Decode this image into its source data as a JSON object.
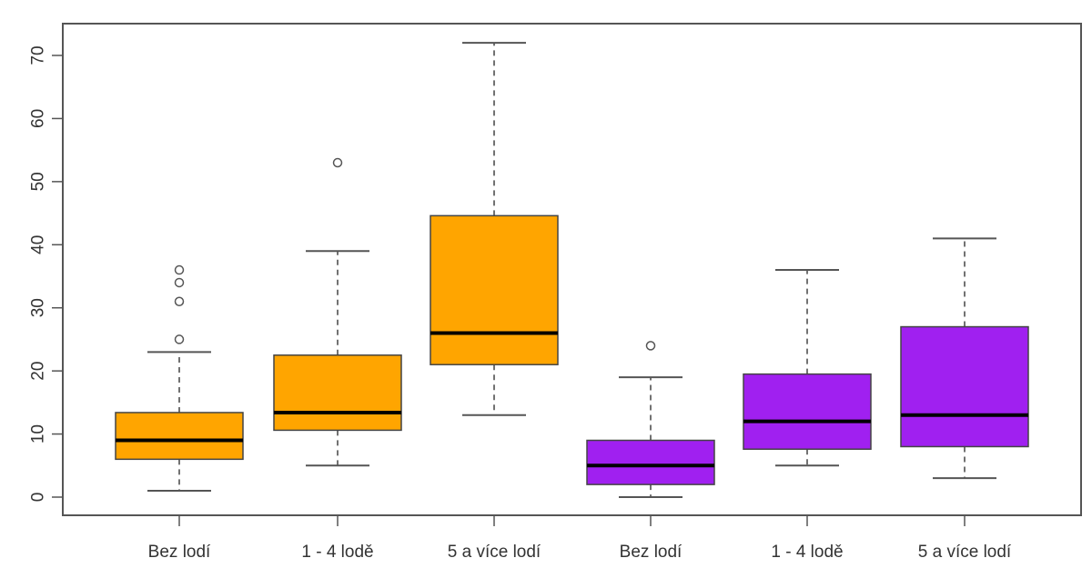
{
  "chart_data": {
    "type": "boxplot",
    "title": "",
    "xlabel": "",
    "ylabel": "",
    "ylim": [
      -3,
      75
    ],
    "y_ticks": [
      0,
      10,
      20,
      30,
      40,
      50,
      60,
      70
    ],
    "y_tick_labels": [
      "0",
      "10",
      "20",
      "30",
      "40",
      "50",
      "60",
      "70"
    ],
    "categories": [
      "Bez lodí",
      "1 - 4 lodě",
      "5 a více lodí",
      "Bez lodí",
      "1 - 4 lodě",
      "5 a více lodí"
    ],
    "colors": {
      "group_a": "#FFA500",
      "group_b": "#A020F0",
      "frame": "#555555",
      "median": "#000000"
    },
    "grid": false,
    "boxes": [
      {
        "category": "Bez lodí",
        "group": "group_a",
        "whisker_low": 1,
        "q1": 6,
        "median": 9,
        "q3": 13.4,
        "whisker_high": 23,
        "outliers": [
          25,
          31,
          34,
          36
        ]
      },
      {
        "category": "1 - 4 lodě",
        "group": "group_a",
        "whisker_low": 5,
        "q1": 10.6,
        "median": 13.4,
        "q3": 22.5,
        "whisker_high": 39,
        "outliers": [
          53
        ]
      },
      {
        "category": "5 a více lodí",
        "group": "group_a",
        "whisker_low": 13,
        "q1": 21,
        "median": 26,
        "q3": 44.6,
        "whisker_high": 72,
        "outliers": []
      },
      {
        "category": "Bez lodí",
        "group": "group_b",
        "whisker_low": 0,
        "q1": 2,
        "median": 5,
        "q3": 9,
        "whisker_high": 19,
        "outliers": [
          24
        ]
      },
      {
        "category": "1 - 4 lodě",
        "group": "group_b",
        "whisker_low": 5,
        "q1": 7.6,
        "median": 12,
        "q3": 19.5,
        "whisker_high": 36,
        "outliers": []
      },
      {
        "category": "5 a více lodí",
        "group": "group_b",
        "whisker_low": 3,
        "q1": 8,
        "median": 13,
        "q3": 27,
        "whisker_high": 41,
        "outliers": []
      }
    ]
  }
}
